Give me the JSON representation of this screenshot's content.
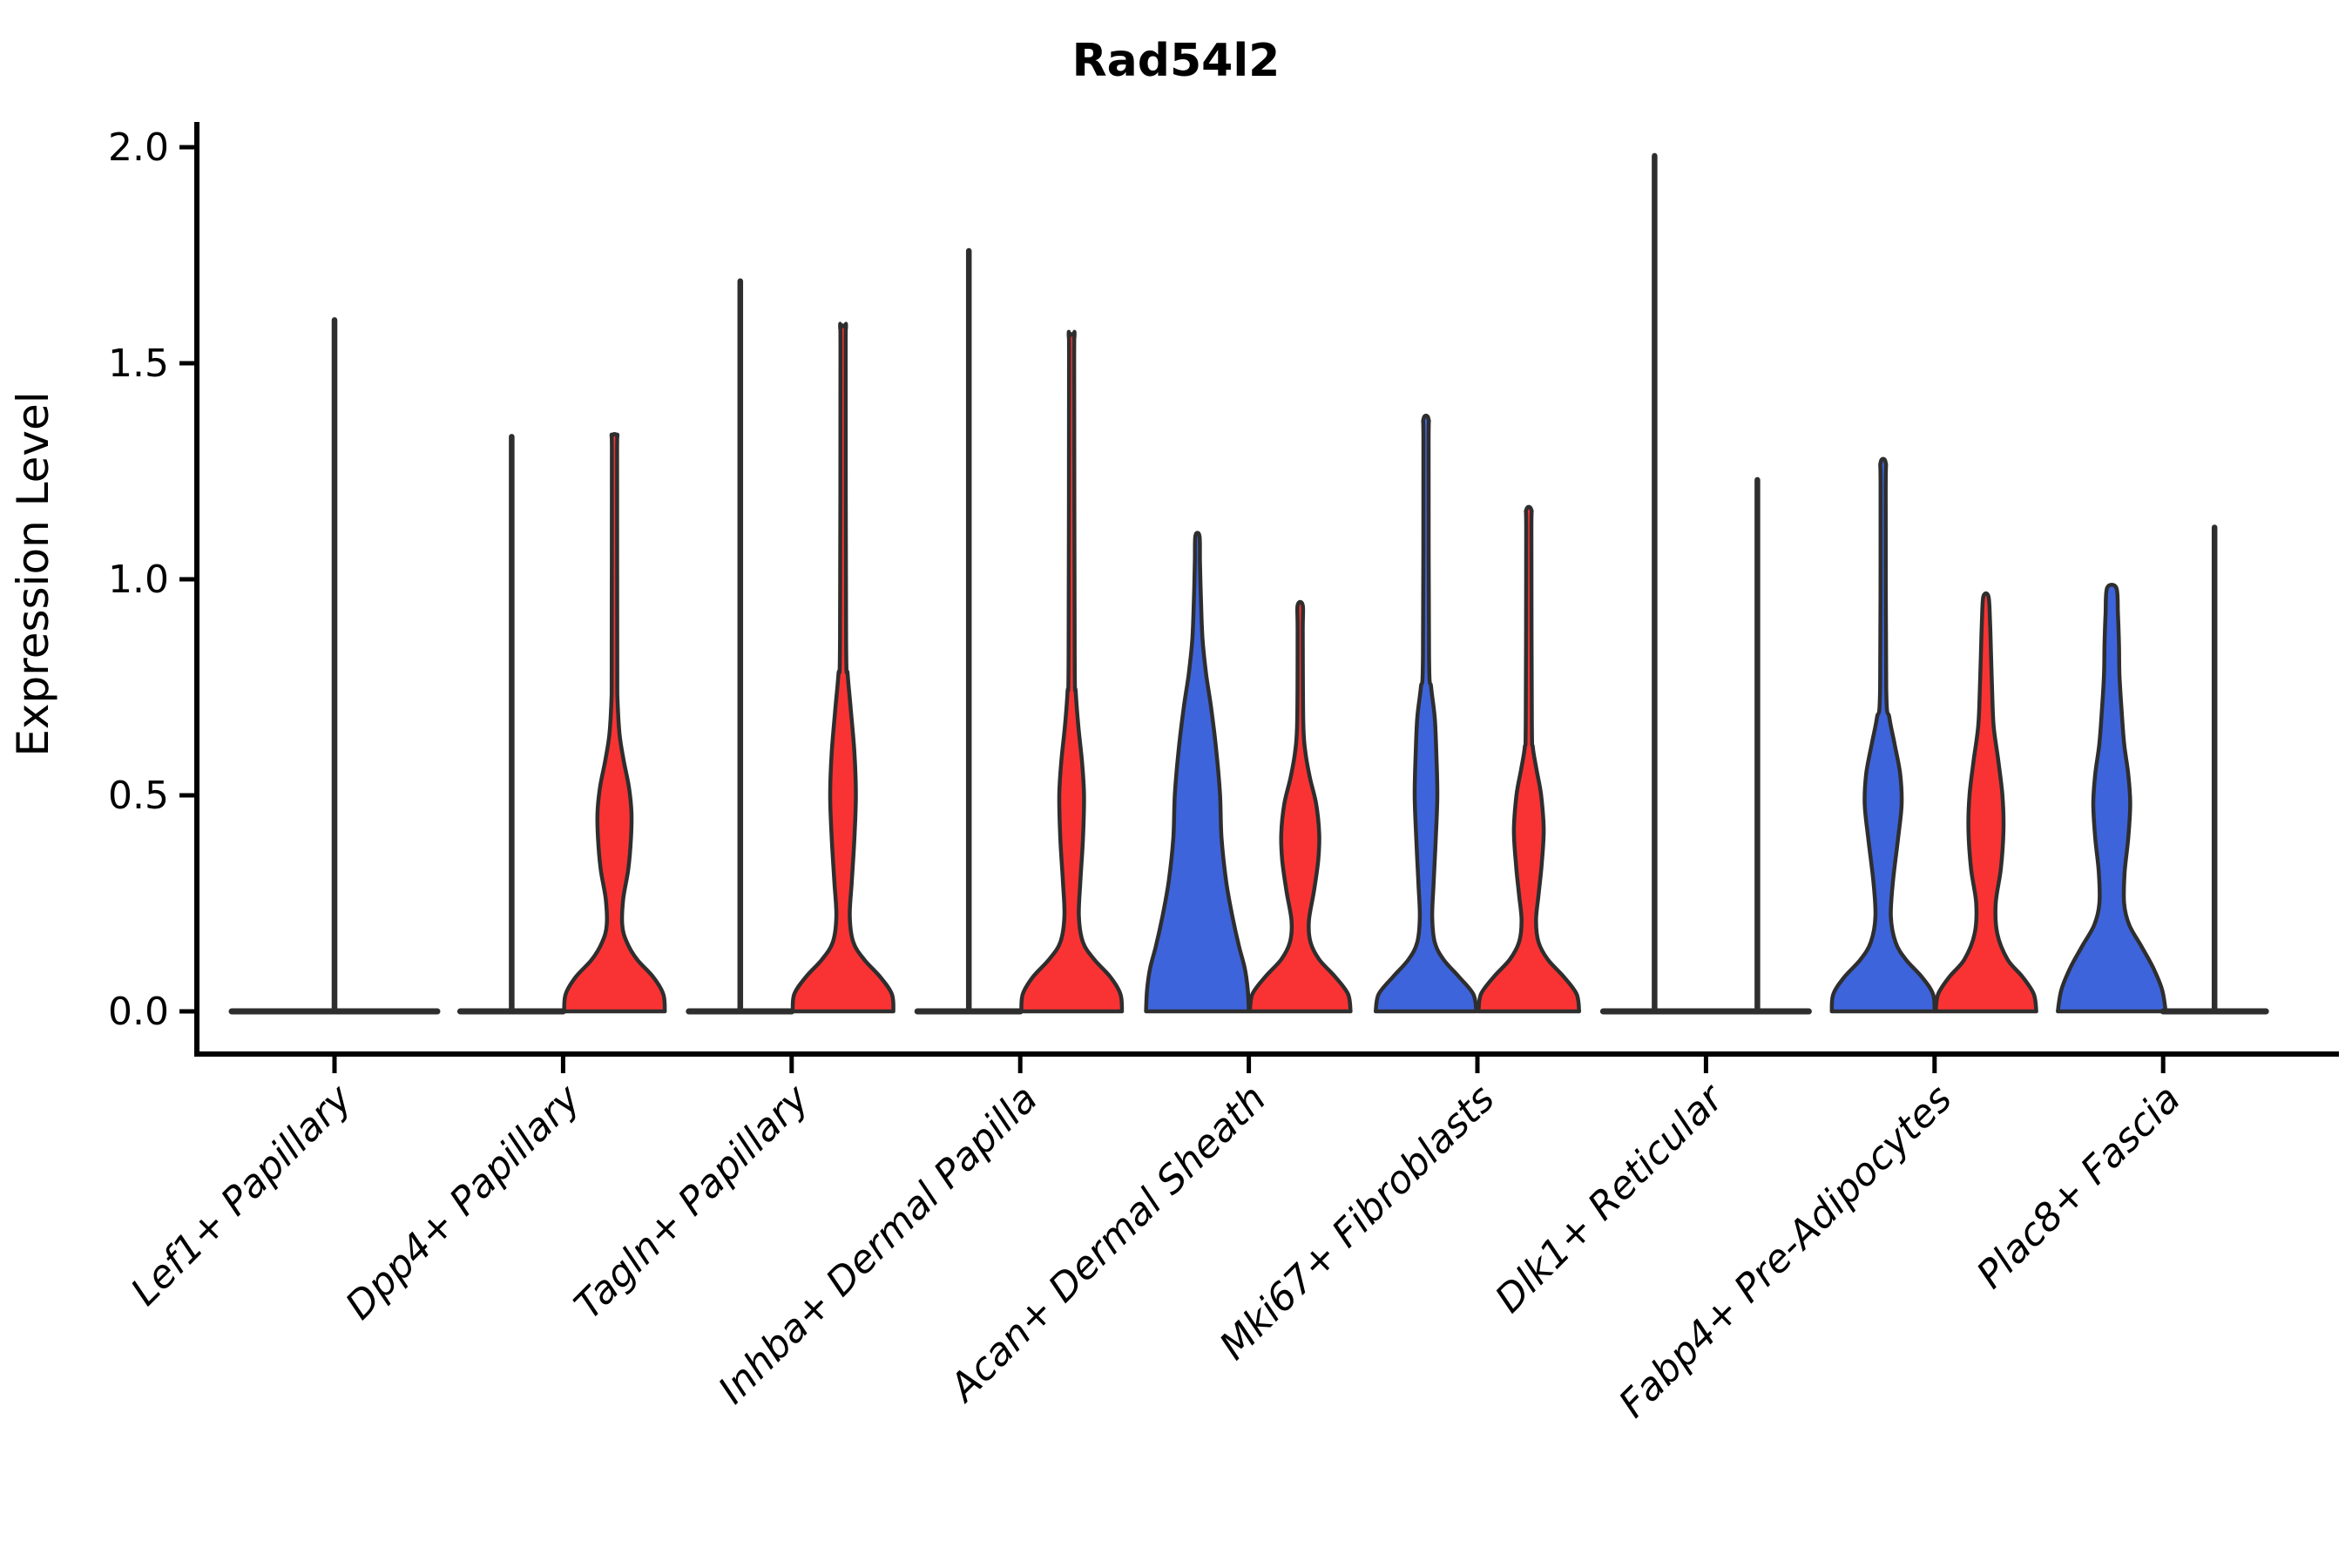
{
  "title": "Rad54l2",
  "ylabel": "Expression Level",
  "chart_data": {
    "type": "violin",
    "title": "Rad54l2",
    "xlabel": "",
    "ylabel": "Expression Level",
    "ylim": [
      0,
      2.06
    ],
    "yticks": [
      0.0,
      0.5,
      1.0,
      1.5,
      2.0
    ],
    "grid": false,
    "legend": "none",
    "categories": [
      "Lef1+ Papillary",
      "Dpp4+ Papillary",
      "Tagln+ Papillary",
      "Inhba+ Dermal Papilla",
      "Acan+ Dermal Sheath",
      "Mki67+ Fibroblasts",
      "Dlk1+ Reticular",
      "Fabp4+ Pre-Adipocytes",
      "Plac8+ Fascia"
    ],
    "colors": {
      "blue": "#3E64DB",
      "red": "#F93333",
      "outline": "#2E2E2E"
    },
    "violins": [
      {
        "category_index": 0,
        "category": "Lef1+ Papillary",
        "position": "center",
        "fill": "none",
        "flat_base": true,
        "base_halfwidth": 2.0,
        "max_expression": 1.6,
        "spike": true,
        "profile": null
      },
      {
        "category_index": 1,
        "category": "Dpp4+ Papillary",
        "position": "left",
        "fill": "none",
        "flat_base": true,
        "base_halfwidth": 1.0,
        "max_expression": 1.33,
        "spike": true,
        "profile": null
      },
      {
        "category_index": 1,
        "category": "Dpp4+ Papillary",
        "position": "right",
        "fill": "red",
        "flat_base": false,
        "base_halfwidth": 0.98,
        "max_expression": 1.33,
        "spike": true,
        "profile": [
          [
            0,
            0.98
          ],
          [
            0.04,
            0.95
          ],
          [
            0.08,
            0.75
          ],
          [
            0.12,
            0.44
          ],
          [
            0.16,
            0.24
          ],
          [
            0.2,
            0.15
          ],
          [
            0.26,
            0.17
          ],
          [
            0.33,
            0.27
          ],
          [
            0.4,
            0.32
          ],
          [
            0.46,
            0.33
          ],
          [
            0.52,
            0.28
          ],
          [
            0.58,
            0.18
          ],
          [
            0.64,
            0.1
          ],
          [
            0.72,
            0.06
          ],
          [
            0.8,
            0.055
          ],
          [
            1.28,
            0.05
          ],
          [
            1.33,
            0.05
          ]
        ]
      },
      {
        "category_index": 2,
        "category": "Tagln+ Papillary",
        "position": "left",
        "fill": "none",
        "flat_base": true,
        "base_halfwidth": 1.0,
        "max_expression": 1.69,
        "spike": true,
        "profile": null
      },
      {
        "category_index": 2,
        "category": "Tagln+ Papillary",
        "position": "right",
        "fill": "red",
        "flat_base": false,
        "base_halfwidth": 0.98,
        "max_expression": 1.58,
        "spike": true,
        "profile": [
          [
            0,
            0.98
          ],
          [
            0.04,
            0.95
          ],
          [
            0.08,
            0.72
          ],
          [
            0.12,
            0.41
          ],
          [
            0.16,
            0.2
          ],
          [
            0.22,
            0.13
          ],
          [
            0.3,
            0.17
          ],
          [
            0.4,
            0.22
          ],
          [
            0.5,
            0.25
          ],
          [
            0.6,
            0.22
          ],
          [
            0.7,
            0.15
          ],
          [
            0.78,
            0.09
          ],
          [
            0.86,
            0.06
          ],
          [
            1.52,
            0.05
          ],
          [
            1.58,
            0.05
          ]
        ]
      },
      {
        "category_index": 3,
        "category": "Inhba+ Dermal Papilla",
        "position": "left",
        "fill": "none",
        "flat_base": true,
        "base_halfwidth": 1.0,
        "max_expression": 1.76,
        "spike": true,
        "profile": null
      },
      {
        "category_index": 3,
        "category": "Inhba+ Dermal Papilla",
        "position": "right",
        "fill": "red",
        "flat_base": false,
        "base_halfwidth": 0.98,
        "max_expression": 1.56,
        "spike": true,
        "profile": [
          [
            0,
            0.98
          ],
          [
            0.04,
            0.95
          ],
          [
            0.08,
            0.75
          ],
          [
            0.12,
            0.44
          ],
          [
            0.16,
            0.22
          ],
          [
            0.22,
            0.14
          ],
          [
            0.3,
            0.17
          ],
          [
            0.4,
            0.22
          ],
          [
            0.5,
            0.24
          ],
          [
            0.58,
            0.2
          ],
          [
            0.66,
            0.13
          ],
          [
            0.74,
            0.08
          ],
          [
            0.82,
            0.06
          ],
          [
            1.5,
            0.05
          ],
          [
            1.56,
            0.05
          ]
        ]
      },
      {
        "category_index": 4,
        "category": "Acan+ Dermal Sheath",
        "position": "left",
        "fill": "blue",
        "flat_base": false,
        "base_halfwidth": 1.0,
        "max_expression": 1.1,
        "spike": false,
        "profile": [
          [
            0,
            1.0
          ],
          [
            0.05,
            0.98
          ],
          [
            0.1,
            0.92
          ],
          [
            0.15,
            0.81
          ],
          [
            0.22,
            0.68
          ],
          [
            0.3,
            0.56
          ],
          [
            0.4,
            0.47
          ],
          [
            0.5,
            0.44
          ],
          [
            0.6,
            0.37
          ],
          [
            0.7,
            0.27
          ],
          [
            0.78,
            0.17
          ],
          [
            0.86,
            0.1
          ],
          [
            0.95,
            0.07
          ],
          [
            1.04,
            0.05
          ],
          [
            1.1,
            0.04
          ]
        ]
      },
      {
        "category_index": 4,
        "category": "Acan+ Dermal Sheath",
        "position": "right",
        "fill": "red",
        "flat_base": false,
        "base_halfwidth": 0.98,
        "max_expression": 0.94,
        "spike": true,
        "profile": [
          [
            0,
            0.98
          ],
          [
            0.04,
            0.93
          ],
          [
            0.08,
            0.68
          ],
          [
            0.12,
            0.37
          ],
          [
            0.16,
            0.2
          ],
          [
            0.21,
            0.17
          ],
          [
            0.28,
            0.27
          ],
          [
            0.35,
            0.35
          ],
          [
            0.41,
            0.37
          ],
          [
            0.48,
            0.31
          ],
          [
            0.54,
            0.19
          ],
          [
            0.6,
            0.1
          ],
          [
            0.67,
            0.06
          ],
          [
            0.88,
            0.05
          ],
          [
            0.94,
            0.05
          ]
        ]
      },
      {
        "category_index": 5,
        "category": "Mki67+ Fibroblasts",
        "position": "left",
        "fill": "blue",
        "flat_base": false,
        "base_halfwidth": 0.98,
        "max_expression": 1.37,
        "spike": true,
        "profile": [
          [
            0,
            0.98
          ],
          [
            0.04,
            0.92
          ],
          [
            0.08,
            0.64
          ],
          [
            0.12,
            0.34
          ],
          [
            0.16,
            0.17
          ],
          [
            0.22,
            0.12
          ],
          [
            0.3,
            0.15
          ],
          [
            0.4,
            0.19
          ],
          [
            0.5,
            0.22
          ],
          [
            0.6,
            0.2
          ],
          [
            0.68,
            0.17
          ],
          [
            0.75,
            0.1
          ],
          [
            0.82,
            0.06
          ],
          [
            1.3,
            0.05
          ],
          [
            1.37,
            0.05
          ]
        ]
      },
      {
        "category_index": 5,
        "category": "Mki67+ Fibroblasts",
        "position": "right",
        "fill": "red",
        "flat_base": false,
        "base_halfwidth": 0.98,
        "max_expression": 1.16,
        "spike": true,
        "profile": [
          [
            0,
            0.98
          ],
          [
            0.04,
            0.93
          ],
          [
            0.08,
            0.68
          ],
          [
            0.12,
            0.37
          ],
          [
            0.16,
            0.19
          ],
          [
            0.21,
            0.14
          ],
          [
            0.27,
            0.19
          ],
          [
            0.34,
            0.25
          ],
          [
            0.42,
            0.29
          ],
          [
            0.5,
            0.24
          ],
          [
            0.56,
            0.15
          ],
          [
            0.61,
            0.08
          ],
          [
            0.67,
            0.06
          ],
          [
            1.1,
            0.05
          ],
          [
            1.16,
            0.05
          ]
        ]
      },
      {
        "category_index": 6,
        "category": "Dlk1+ Reticular",
        "position": "left",
        "fill": "none",
        "flat_base": true,
        "base_halfwidth": 1.0,
        "max_expression": 1.98,
        "spike": true,
        "profile": null
      },
      {
        "category_index": 6,
        "category": "Dlk1+ Reticular",
        "position": "right",
        "fill": "none",
        "flat_base": true,
        "base_halfwidth": 1.0,
        "max_expression": 1.23,
        "spike": true,
        "profile": null
      },
      {
        "category_index": 7,
        "category": "Fabp4+ Pre-Adipocytes",
        "position": "left",
        "fill": "blue",
        "flat_base": false,
        "base_halfwidth": 1.0,
        "max_expression": 1.27,
        "spike": true,
        "profile": [
          [
            0,
            1.0
          ],
          [
            0.04,
            0.97
          ],
          [
            0.08,
            0.75
          ],
          [
            0.12,
            0.44
          ],
          [
            0.16,
            0.24
          ],
          [
            0.22,
            0.15
          ],
          [
            0.3,
            0.19
          ],
          [
            0.4,
            0.29
          ],
          [
            0.48,
            0.36
          ],
          [
            0.55,
            0.33
          ],
          [
            0.62,
            0.22
          ],
          [
            0.68,
            0.12
          ],
          [
            0.75,
            0.06
          ],
          [
            1.2,
            0.05
          ],
          [
            1.27,
            0.05
          ]
        ]
      },
      {
        "category_index": 7,
        "category": "Fabp4+ Pre-Adipocytes",
        "position": "right",
        "fill": "red",
        "flat_base": false,
        "base_halfwidth": 0.98,
        "max_expression": 0.96,
        "spike": false,
        "profile": [
          [
            0,
            0.98
          ],
          [
            0.04,
            0.93
          ],
          [
            0.08,
            0.71
          ],
          [
            0.12,
            0.42
          ],
          [
            0.18,
            0.22
          ],
          [
            0.25,
            0.19
          ],
          [
            0.33,
            0.29
          ],
          [
            0.42,
            0.34
          ],
          [
            0.5,
            0.32
          ],
          [
            0.58,
            0.24
          ],
          [
            0.66,
            0.15
          ],
          [
            0.74,
            0.12
          ],
          [
            0.82,
            0.1
          ],
          [
            0.9,
            0.08
          ],
          [
            0.96,
            0.05
          ]
        ]
      },
      {
        "category_index": 8,
        "category": "Plac8+ Fascia",
        "position": "left",
        "fill": "blue",
        "flat_base": false,
        "base_halfwidth": 1.05,
        "max_expression": 0.98,
        "spike": false,
        "profile": [
          [
            0,
            1.05
          ],
          [
            0.05,
            0.98
          ],
          [
            0.1,
            0.81
          ],
          [
            0.15,
            0.58
          ],
          [
            0.2,
            0.34
          ],
          [
            0.25,
            0.24
          ],
          [
            0.32,
            0.25
          ],
          [
            0.4,
            0.32
          ],
          [
            0.48,
            0.36
          ],
          [
            0.55,
            0.32
          ],
          [
            0.62,
            0.24
          ],
          [
            0.7,
            0.19
          ],
          [
            0.78,
            0.15
          ],
          [
            0.85,
            0.14
          ],
          [
            0.92,
            0.12
          ],
          [
            0.98,
            0.09
          ]
        ]
      },
      {
        "category_index": 8,
        "category": "Plac8+ Fascia",
        "position": "right",
        "fill": "none",
        "flat_base": true,
        "base_halfwidth": 1.0,
        "max_expression": 1.12,
        "spike": true,
        "profile": null
      }
    ]
  }
}
